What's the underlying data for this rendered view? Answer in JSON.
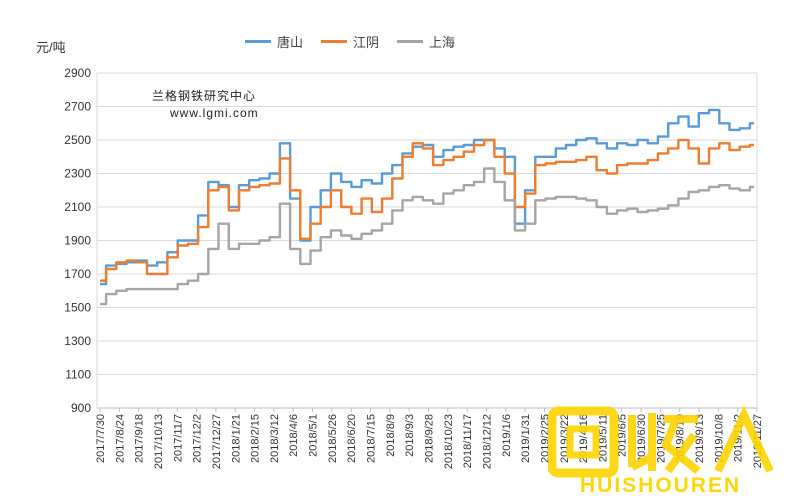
{
  "chart_data": {
    "type": "line",
    "title": "",
    "unit_label": "元/吨",
    "annotation": [
      "兰格钢铁研究中心",
      "www.lgmi.com"
    ],
    "xlabel": "",
    "ylabel": "元/吨",
    "ylim": [
      900,
      2900
    ],
    "yticks": [
      900,
      1100,
      1300,
      1500,
      1700,
      1900,
      2100,
      2300,
      2500,
      2700,
      2900
    ],
    "ytick_labels": [
      "900",
      "1100",
      "1300",
      "1500",
      "1700",
      "1900",
      "2100",
      "2300",
      "2500",
      "2700",
      "2900"
    ],
    "x_tick_labels": [
      "2017/7/30",
      "2017/8/24",
      "2017/9/18",
      "2017/10/13",
      "2017/11/7",
      "2017/12/2",
      "2017/12/27",
      "2018/1/21",
      "2018/2/15",
      "2018/3/12",
      "2018/4/6",
      "2018/5/1",
      "2018/5/26",
      "2018/6/20",
      "2018/7/15",
      "2018/8/9",
      "2018/9/3",
      "2018/9/28",
      "2018/10/23",
      "2018/11/17",
      "2018/12/12",
      "2019/1/6",
      "2019/1/31",
      "2019/2/25",
      "2019/3/22",
      "2019/4/16",
      "2019/5/11",
      "2019/6/5",
      "2019/6/30",
      "2019/7/25",
      "2019/8/19",
      "2019/9/13",
      "2019/10/8",
      "2019/11/2",
      "2019/11/27"
    ],
    "grid": true,
    "legend_position": "top",
    "series": [
      {
        "name": "唐山",
        "color": "#5b9bd5",
        "values": [
          1640,
          1750,
          1760,
          1770,
          1780,
          1750,
          1770,
          1830,
          1900,
          1900,
          2050,
          2250,
          2230,
          2100,
          2230,
          2260,
          2270,
          2300,
          2480,
          2150,
          1900,
          2100,
          2200,
          2300,
          2250,
          2220,
          2260,
          2240,
          2300,
          2350,
          2420,
          2460,
          2470,
          2400,
          2440,
          2460,
          2470,
          2500,
          2500,
          2450,
          2400,
          2000,
          2200,
          2400,
          2400,
          2450,
          2470,
          2500,
          2510,
          2480,
          2450,
          2480,
          2470,
          2500,
          2480,
          2520,
          2600,
          2640,
          2580,
          2660,
          2680,
          2600,
          2560,
          2570,
          2600
        ]
      },
      {
        "name": "江阴",
        "color": "#ed7d31",
        "values": [
          1660,
          1730,
          1770,
          1780,
          1770,
          1700,
          1700,
          1800,
          1870,
          1880,
          1980,
          2200,
          2220,
          2080,
          2200,
          2220,
          2230,
          2240,
          2390,
          2200,
          1910,
          2000,
          2100,
          2200,
          2100,
          2060,
          2150,
          2070,
          2150,
          2270,
          2400,
          2480,
          2450,
          2350,
          2380,
          2400,
          2430,
          2470,
          2500,
          2400,
          2300,
          2100,
          2180,
          2350,
          2360,
          2370,
          2370,
          2380,
          2400,
          2320,
          2300,
          2350,
          2360,
          2360,
          2380,
          2420,
          2450,
          2500,
          2450,
          2360,
          2450,
          2480,
          2440,
          2460,
          2470
        ]
      },
      {
        "name": "上海",
        "color": "#a5a5a5",
        "values": [
          1520,
          1580,
          1600,
          1610,
          1610,
          1610,
          1610,
          1610,
          1640,
          1660,
          1700,
          1850,
          2000,
          1850,
          1880,
          1880,
          1900,
          1920,
          2120,
          1850,
          1760,
          1840,
          1920,
          1960,
          1930,
          1910,
          1940,
          1960,
          2000,
          2080,
          2140,
          2160,
          2140,
          2120,
          2180,
          2200,
          2230,
          2250,
          2330,
          2250,
          2140,
          1960,
          2000,
          2140,
          2150,
          2160,
          2160,
          2150,
          2140,
          2100,
          2060,
          2080,
          2090,
          2070,
          2080,
          2090,
          2110,
          2150,
          2190,
          2200,
          2220,
          2230,
          2210,
          2200,
          2220
        ]
      }
    ]
  },
  "watermark": {
    "brand_text": "HUISHOUREN",
    "brand_color": "#ffd400"
  }
}
